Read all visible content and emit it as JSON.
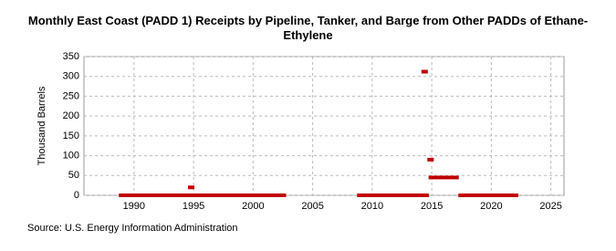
{
  "chart_data": {
    "type": "scatter",
    "title": "Monthly East Coast (PADD 1) Receipts by Pipeline, Tanker, and Barge from Other PADDs of Ethane-Ethylene",
    "y_label": "Thousand Barrels",
    "source": "Source: U.S. Energy Information Administration",
    "xlim": [
      1985.8,
      2026.1
    ],
    "xticks": [
      1990,
      1995,
      2000,
      2005,
      2010,
      2015,
      2020,
      2025
    ],
    "ylim": [
      0,
      350
    ],
    "yticks": [
      0,
      50,
      100,
      150,
      200,
      250,
      300,
      350
    ],
    "grid": true,
    "series": [
      {
        "name": "Ethane-Ethylene",
        "color": "#c00000",
        "x": [
          1989,
          1989.5,
          1990,
          1990.5,
          1991,
          1991.5,
          1992,
          1992.5,
          1993,
          1993.5,
          1994,
          1994.5,
          1994.8,
          1995,
          1995.5,
          1996,
          1996.5,
          1997,
          1997.5,
          1998,
          1998.5,
          1999,
          1999.5,
          2000,
          2000.5,
          2001,
          2001.5,
          2002,
          2002.5,
          2009,
          2009.5,
          2010,
          2010.5,
          2011,
          2011.5,
          2012,
          2012.5,
          2013,
          2013.5,
          2014,
          2014.4,
          2014.5,
          2014.9,
          2015,
          2015.5,
          2016,
          2016.5,
          2017,
          2017.5,
          2018,
          2018.5,
          2019,
          2019.5,
          2020,
          2020.5,
          2021,
          2021.5,
          2022
        ],
        "values": [
          0,
          0,
          0,
          0,
          0,
          0,
          0,
          0,
          0,
          0,
          0,
          0,
          20,
          0,
          0,
          0,
          0,
          0,
          0,
          0,
          0,
          0,
          0,
          0,
          0,
          0,
          0,
          0,
          0,
          0,
          0,
          0,
          0,
          0,
          0,
          0,
          0,
          0,
          0,
          0,
          312,
          0,
          90,
          45,
          45,
          45,
          45,
          45,
          0,
          0,
          0,
          0,
          0,
          0,
          0,
          0,
          0,
          0
        ]
      }
    ]
  }
}
